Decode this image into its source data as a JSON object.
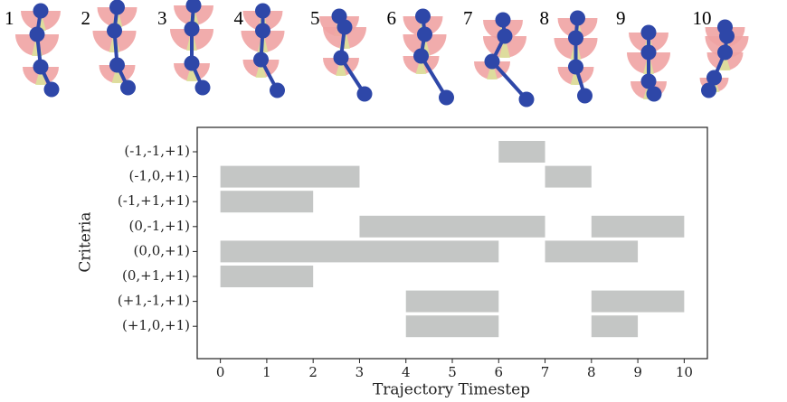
{
  "chart_data": {
    "type": "range-bar",
    "frame_labels": [
      "1",
      "2",
      "3",
      "4",
      "5",
      "6",
      "7",
      "8",
      "9",
      "10"
    ],
    "xlabel": "Trajectory Timestep",
    "ylabel": "Criteria",
    "categories": [
      "(-1,-1,+1)",
      "(-1,0,+1)",
      "(-1,+1,+1)",
      "(0,-1,+1)",
      "(0,0,+1)",
      "(0,+1,+1)",
      "(+1,-1,+1)",
      "(+1,0,+1)"
    ],
    "intervals": [
      [
        [
          6,
          7
        ]
      ],
      [
        [
          0,
          3
        ],
        [
          7,
          8
        ]
      ],
      [
        [
          0,
          2
        ]
      ],
      [
        [
          3,
          7
        ],
        [
          8,
          10
        ]
      ],
      [
        [
          0,
          6
        ],
        [
          7,
          9
        ]
      ],
      [
        [
          0,
          2
        ]
      ],
      [
        [
          4,
          6
        ],
        [
          8,
          10
        ]
      ],
      [
        [
          4,
          6
        ],
        [
          8,
          9
        ]
      ]
    ],
    "color": "#c4c6c5",
    "xlim": [
      -0.5,
      10.5
    ],
    "xticks": [
      0,
      1,
      2,
      3,
      4,
      5,
      6,
      7,
      8,
      9,
      10
    ]
  }
}
